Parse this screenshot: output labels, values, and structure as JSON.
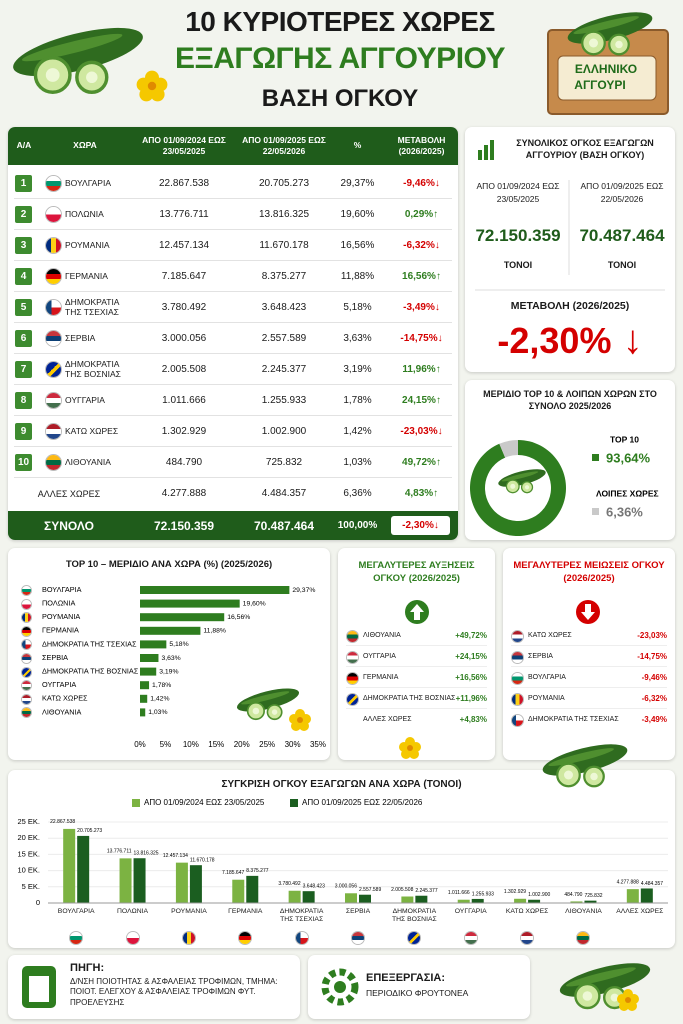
{
  "header": {
    "title_line1": "10 ΚΥΡΙΟΤΕΡΕΣ ΧΩΡΕΣ",
    "title_line2": "ΕΞΑΓΩΓΗΣ ΑΓΓΟΥΡΙΟΥ",
    "title_line3": "ΒΑΣΗ ΟΓΚΟΥ",
    "badge_line1": "ΕΛΛΗΝΙΚΟ",
    "badge_line2": "ΑΓΓΟΥΡΙ"
  },
  "table": {
    "columns": [
      "Α/Α",
      "ΧΩΡΑ",
      "ΑΠΟ 01/09/2024 ΕΩΣ 23/05/2025",
      "ΑΠΟ 01/09/2025 ΕΩΣ 22/05/2026",
      "%",
      "ΜΕΤΑΒΟΛΗ (2026/2025)"
    ],
    "rows": [
      [
        "1",
        "ΒΟΥΛΓΑΡΙΑ",
        "22.867.538",
        "20.705.273",
        "29,37%",
        "-9,46%"
      ],
      [
        "2",
        "ΠΟΛΩΝΙΑ",
        "13.776.711",
        "13.816.325",
        "19,60%",
        "0,29%"
      ],
      [
        "3",
        "ΡΟΥΜΑΝΙΑ",
        "12.457.134",
        "11.670.178",
        "16,56%",
        "-6,32%"
      ],
      [
        "4",
        "ΓΕΡΜΑΝΙΑ",
        "7.185.647",
        "8.375.277",
        "11,88%",
        "16,56%"
      ],
      [
        "5",
        "ΔΗΜΟΚΡΑΤΙΑ ΤΗΣ ΤΣΕΧΙΑΣ",
        "3.780.492",
        "3.648.423",
        "5,18%",
        "-3,49%"
      ],
      [
        "6",
        "ΣΕΡΒΙΑ",
        "3.000.056",
        "2.557.589",
        "3,63%",
        "-14,75%"
      ],
      [
        "7",
        "ΔΗΜΟΚΡΑΤΙΑ ΤΗΣ ΒΟΣΝΙΑΣ",
        "2.005.508",
        "2.245.377",
        "3,19%",
        "11,96%"
      ],
      [
        "8",
        "ΟΥΓΓΑΡΙΑ",
        "1.011.666",
        "1.255.933",
        "1,78%",
        "24,15%"
      ],
      [
        "9",
        "ΚΑΤΩ ΧΩΡΕΣ",
        "1.302.929",
        "1.002.900",
        "1,42%",
        "-23,03%"
      ],
      [
        "10",
        "ΛΙΘΟΥΑΝΙΑ",
        "484.790",
        "725.832",
        "1,03%",
        "49,72%"
      ]
    ],
    "other_row": [
      "ΑΛΛΕΣ ΧΩΡΕΣ",
      "4.277.888",
      "4.484.357",
      "6,36%",
      "4,83%"
    ],
    "total": [
      "ΣΥΝΟΛΟ",
      "72.150.359",
      "70.487.464",
      "100,00%",
      "-2,30%"
    ]
  },
  "summary": {
    "title": "ΣΥΝΟΛΙΚΟΣ ΟΓΚΟΣ ΕΞΑΓΩΓΩΝ ΑΓΓΟΥΡΙΟΥ (ΒΑΣΗ ΟΓΚΟΥ)",
    "periods": [
      {
        "label": "ΑΠΟ 01/09/2024 ΕΩΣ 23/05/2025",
        "value": "72.150.359",
        "unit": "ΤΟΝΟΙ"
      },
      {
        "label": "ΑΠΟ 01/09/2025 ΕΩΣ 22/05/2026",
        "value": "70.487.464",
        "unit": "ΤΟΝΟΙ"
      }
    ],
    "change_label": "ΜΕΤΑΒΟΛΗ (2026/2025)",
    "change": "-2,30%"
  },
  "increases": {
    "title": "ΜΕΓΑΛΥΤΕΡΕΣ ΑΥΞΗΣΕΙΣ ΟΓΚΟΥ (2026/2025)",
    "items": [
      {
        "name": "ΛΙΘΟΥΑΝΙΑ",
        "change": "+49,72%"
      },
      {
        "name": "ΟΥΓΓΑΡΙΑ",
        "change": "+24,15%"
      },
      {
        "name": "ΓΕΡΜΑΝΙΑ",
        "change": "+16,56%"
      },
      {
        "name": "ΔΗΜΟΚΡΑΤΙΑ ΤΗΣ ΒΟΣΝΙΑΣ",
        "change": "+11,96%"
      },
      {
        "name": "ΑΛΛΕΣ ΧΩΡΕΣ",
        "change": "+4,83%"
      }
    ]
  },
  "decreases": {
    "title": "ΜΕΓΑΛΥΤΕΡΕΣ ΜΕΙΩΣΕΙΣ ΟΓΚΟΥ (2026/2025)",
    "items": [
      {
        "name": "ΚΑΤΩ ΧΩΡΕΣ",
        "change": "-23,03%"
      },
      {
        "name": "ΣΕΡΒΙΑ",
        "change": "-14,75%"
      },
      {
        "name": "ΒΟΥΛΓΑΡΙΑ",
        "change": "-9,46%"
      },
      {
        "name": "ΡΟΥΜΑΝΙΑ",
        "change": "-6,32%"
      },
      {
        "name": "ΔΗΜΟΚΡΑΤΙΑ ΤΗΣ ΤΣΕΧΙΑΣ",
        "change": "-3,49%"
      }
    ]
  },
  "footer": {
    "source_label": "ΠΗΓΗ:",
    "source": "Δ/ΝΣΗ ΠΟΙΟΤΗΤΑΣ & ΑΣΦΑΛΕΙΑΣ ΤΡΟΦΙΜΩΝ, ΤΜΗΜΑ: ΠΟΙΟΤ. ΕΛΕΓΧΟΥ & ΑΣΦΑΛΕΙΑΣ ΤΡΟΦΙΜΩΝ ΦΥΤ. ΠΡΟΕΛΕΥΣΗΣ",
    "processing_label": "ΕΠΕΞΕΡΓΑΣΙΑ:",
    "processing": "ΠΕΡΙΟΔΙΚΟ ΦΡΟΥΤΟΝΕΑ"
  },
  "chart_data": [
    {
      "type": "pie",
      "donut": true,
      "title": "ΜΕΡΙΔΙΟ TOP 10 & ΛΟΙΠΩΝ ΧΩΡΩΝ ΣΤΟ ΣΥΝΟΛΟ 2025/2026",
      "categories": [
        "TOP 10",
        "ΛΟΙΠΕΣ ΧΩΡΕΣ"
      ],
      "values": [
        93.64,
        6.36
      ],
      "value_labels": [
        "93,64%",
        "6,36%"
      ],
      "colors": [
        "#2e7d1f",
        "#c9c9c9"
      ]
    },
    {
      "type": "bar",
      "orientation": "horizontal",
      "title": "TOP 10 – ΜΕΡΙΔΙΟ ΑΝΑ ΧΩΡΑ (%) (2025/2026)",
      "categories": [
        "ΒΟΥΛΓΑΡΙΑ",
        "ΠΟΛΩΝΙΑ",
        "ΡΟΥΜΑΝΙΑ",
        "ΓΕΡΜΑΝΙΑ",
        "ΔΗΜΟΚΡΑΤΙΑ ΤΗΣ ΤΣΕΧΙΑΣ",
        "ΣΕΡΒΙΑ",
        "ΔΗΜΟΚΡΑΤΙΑ ΤΗΣ ΒΟΣΝΙΑΣ",
        "ΟΥΓΓΑΡΙΑ",
        "ΚΑΤΩ ΧΩΡΕΣ",
        "ΛΙΘΟΥΑΝΙΑ"
      ],
      "values": [
        29.37,
        19.6,
        16.56,
        11.88,
        5.18,
        3.63,
        3.19,
        1.78,
        1.42,
        1.03
      ],
      "value_labels": [
        "29,37%",
        "19,60%",
        "16,56%",
        "11,88%",
        "5,18%",
        "3,63%",
        "3,19%",
        "1,78%",
        "1,42%",
        "1,03%"
      ],
      "color": "#2e7d1f",
      "xlim": [
        0,
        35
      ],
      "xticks": [
        {
          "value": 0,
          "label": "0%"
        },
        {
          "value": 5,
          "label": "5%"
        },
        {
          "value": 10,
          "label": "10%"
        },
        {
          "value": 15,
          "label": "15%"
        },
        {
          "value": 20,
          "label": "20%"
        },
        {
          "value": 25,
          "label": "25%"
        },
        {
          "value": 30,
          "label": "30%"
        },
        {
          "value": 35,
          "label": "35%"
        }
      ]
    },
    {
      "type": "grouped_bar",
      "title": "ΣΥΓΚΡΙΣΗ ΟΓΚΟΥ ΕΞΑΓΩΓΩΝ ΑΝΑ ΧΩΡΑ (ΤΟΝΟΙ)",
      "categories": [
        "ΒΟΥΛΓΑΡΙΑ",
        "ΠΟΛΩΝΙΑ",
        "ΡΟΥΜΑΝΙΑ",
        "ΓΕΡΜΑΝΙΑ",
        "ΔΗΜΟΚΡΑΤΙΑ ΤΗΣ ΤΣΕΧΙΑΣ",
        "ΣΕΡΒΙΑ",
        "ΔΗΜΟΚΡΑΤΙΑ ΤΗΣ ΒΟΣΝΙΑΣ",
        "ΟΥΓΓΑΡΙΑ",
        "ΚΑΤΩ ΧΩΡΕΣ",
        "ΛΙΘΟΥΑΝΙΑ",
        "ΑΛΛΕΣ ΧΩΡΕΣ"
      ],
      "series": [
        {
          "name": "ΑΠΟ 01/09/2024 ΕΩΣ 23/05/2025",
          "color": "#7cb342",
          "values": [
            22867538,
            13776711,
            12457134,
            7185647,
            3780492,
            3000056,
            2005508,
            1011666,
            1302929,
            484790,
            4277888
          ],
          "value_labels": [
            "22.867.538",
            "13.776.711",
            "12.457.134",
            "7.185.647",
            "3.780.492",
            "3.000.056",
            "2.005.508",
            "1.011.666",
            "1.302.929",
            "484.790",
            "4.277.888"
          ]
        },
        {
          "name": "ΑΠΟ 01/09/2025 ΕΩΣ 22/05/2026",
          "color": "#1b5e20",
          "values": [
            20705273,
            13816325,
            11670178,
            8375277,
            3648423,
            2557589,
            2245377,
            1255933,
            1002900,
            725832,
            4484357
          ],
          "value_labels": [
            "20.705.273",
            "13.816.325",
            "11.670.178",
            "8.375.277",
            "3.648.423",
            "2.557.589",
            "2.245.377",
            "1.255.933",
            "1.002.900",
            "725.832",
            "4.484.357"
          ]
        }
      ],
      "ylim": [
        0,
        25000000
      ],
      "yticks": [
        0,
        {
          "value": 5000000,
          "label": "5 ΕΚ."
        },
        {
          "value": 10000000,
          "label": "10 ΕΚ."
        },
        {
          "value": 15000000,
          "label": "15 ΕΚ."
        },
        {
          "value": 20000000,
          "label": "20 ΕΚ."
        },
        {
          "value": 25000000,
          "label": "25 ΕΚ."
        }
      ],
      "grid": true
    }
  ]
}
